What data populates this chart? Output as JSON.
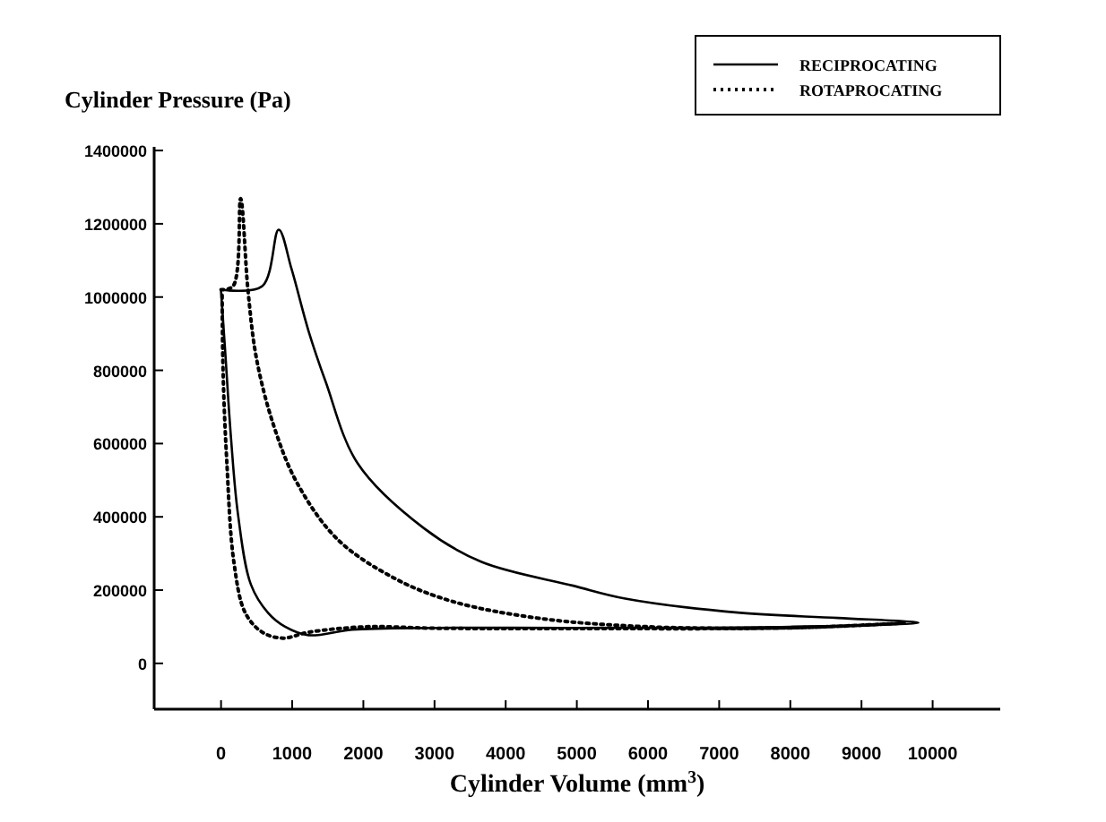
{
  "chart_data": {
    "type": "line",
    "xlabel": "Cylinder Volume (mm$^{3}$)",
    "ylabel": "Cylinder Pressure (Pa)",
    "xlim": [
      -940,
      10950
    ],
    "ylim": [
      -125000,
      1410000
    ],
    "xticks": [
      0,
      1000,
      2000,
      3000,
      4000,
      5000,
      6000,
      7000,
      8000,
      9000,
      10000
    ],
    "yticks": [
      0,
      200000,
      400000,
      600000,
      800000,
      1000000,
      1200000,
      1400000
    ],
    "legend": "top right",
    "grid": false,
    "series": [
      {
        "name": "RECIPROCATING",
        "color": "#000000",
        "line_style": "solid",
        "x": [
          0,
          580,
          810,
          990,
          1230,
          1470,
          1920,
          2850,
          3660,
          4950,
          5680,
          7300,
          8670,
          9800,
          8000,
          5000,
          3000,
          1840,
          1230,
          900,
          660,
          420,
          240,
          140,
          55,
          0
        ],
        "values": [
          1020000,
          1030000,
          1184000,
          1077000,
          907000,
          769000,
          546000,
          369000,
          277000,
          212000,
          177000,
          138000,
          124000,
          111000,
          100000,
          97000,
          97000,
          92000,
          77000,
          100000,
          138000,
          215000,
          404000,
          615000,
          861000,
          1015000
        ]
      },
      {
        "name": "ROTAPROCATING",
        "color": "#000000",
        "line_style": "dotted",
        "x": [
          0,
          170,
          275,
          380,
          500,
          745,
          1070,
          1640,
          2450,
          3255,
          4470,
          6000,
          8000,
          9600,
          8000,
          5000,
          3000,
          2040,
          1230,
          870,
          580,
          340,
          180,
          80,
          30,
          15
        ],
        "values": [
          1020000,
          1030000,
          1269000,
          1015000,
          830000,
          646000,
          492000,
          338000,
          231000,
          169000,
          123000,
          100000,
          97000,
          110000,
          97000,
          95000,
          96000,
          100000,
          85000,
          69000,
          85000,
          138000,
          277000,
          554000,
          785000,
          1015000
        ]
      }
    ]
  }
}
